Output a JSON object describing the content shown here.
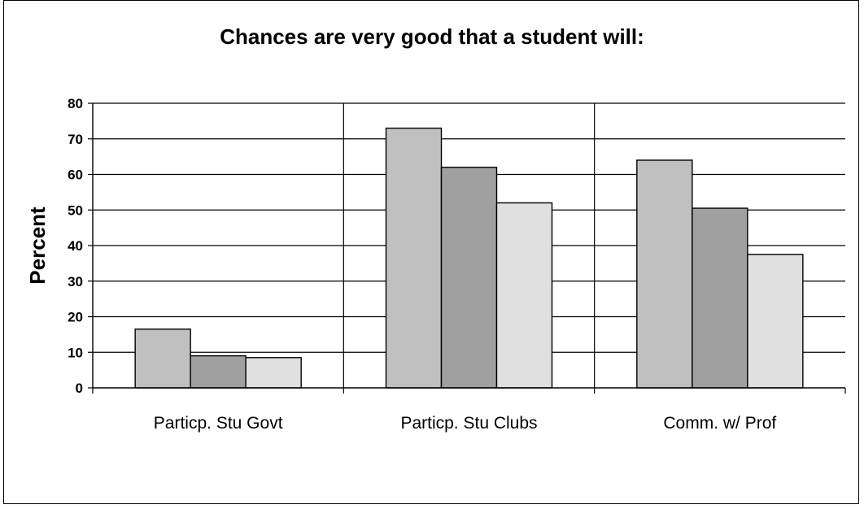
{
  "chart_data": {
    "type": "bar",
    "title": "Chances are very good that a student will:",
    "xlabel": "",
    "ylabel": "Percent",
    "ylim": [
      0,
      80
    ],
    "yticks": [
      0,
      10,
      20,
      30,
      40,
      50,
      60,
      70,
      80
    ],
    "categories": [
      "Particp. Stu Govt",
      "Particp. Stu Clubs",
      "Comm. w/ Prof"
    ],
    "series": [
      {
        "color": "#c0c0c0",
        "values": [
          16.5,
          73,
          64
        ]
      },
      {
        "color": "#a0a0a0",
        "values": [
          9,
          62,
          50.5
        ]
      },
      {
        "color": "#e0e0e0",
        "values": [
          8.5,
          52,
          37.5
        ]
      }
    ],
    "grid": true,
    "legend": "none"
  }
}
